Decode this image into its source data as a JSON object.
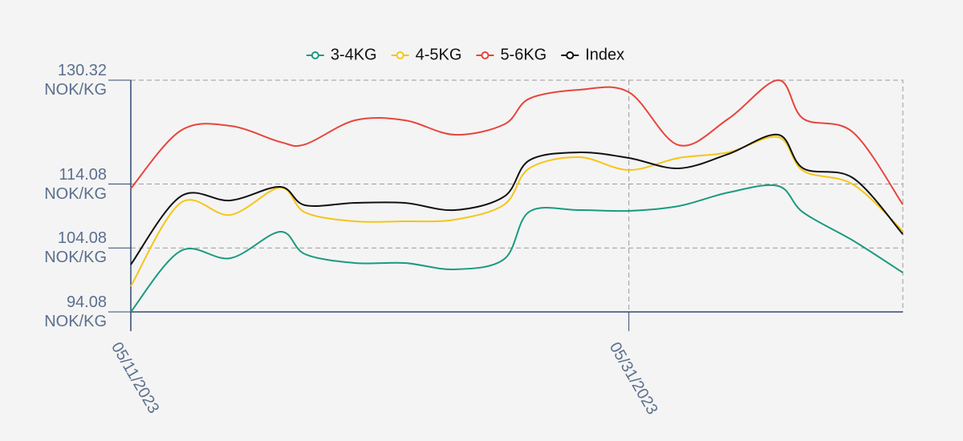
{
  "chart_data": {
    "type": "line",
    "x": [
      "05/11/2023",
      "05/13/2023",
      "05/15/2023",
      "05/17/2023",
      "05/18/2023",
      "05/20/2023",
      "05/22/2023",
      "05/24/2023",
      "05/26/2023",
      "05/27/2023",
      "05/29/2023",
      "05/31/2023",
      "06/02/2023",
      "06/04/2023",
      "06/06/2023",
      "06/07/2023",
      "06/09/2023",
      "06/11/2023"
    ],
    "xlim": [
      "05/11/2023",
      "06/11/2023"
    ],
    "xticks": [
      "05/11/2023",
      "05/31/2023"
    ],
    "ylim": [
      94.08,
      130.32
    ],
    "yticks": [
      {
        "value": 94.08,
        "label": "94.08 NOK/KG"
      },
      {
        "value": 104.08,
        "label": "104.08 NOK/KG"
      },
      {
        "value": 114.08,
        "label": "114.08 NOK/KG"
      },
      {
        "value": 130.32,
        "label": "130.32 NOK/KG"
      }
    ],
    "grid": true,
    "legend": "top",
    "series": [
      {
        "name": "3-4KG",
        "color": "#1a9a80",
        "values": [
          94.08,
          103.61,
          102.48,
          106.62,
          103.11,
          101.73,
          101.73,
          100.73,
          102.36,
          109.75,
          110.0,
          109.88,
          110.63,
          112.76,
          113.77,
          109.63,
          105.24,
          100.22
        ]
      },
      {
        "name": "4-5KG",
        "color": "#f5c518",
        "values": [
          98.09,
          111.13,
          109.25,
          113.52,
          109.63,
          108.25,
          108.25,
          108.5,
          110.88,
          116.53,
          118.28,
          116.27,
          118.16,
          119.03,
          121.42,
          116.15,
          114.02,
          106.74
        ]
      },
      {
        "name": "5-6KG",
        "color": "#e8453c",
        "values": [
          113.39,
          122.42,
          123.17,
          120.66,
          120.28,
          124.05,
          124.05,
          121.79,
          123.42,
          127.43,
          128.81,
          128.44,
          120.16,
          124.3,
          130.32,
          124.3,
          122.17,
          110.88
        ]
      },
      {
        "name": "Index",
        "color": "#111111",
        "values": [
          101.48,
          112.14,
          111.51,
          113.64,
          110.76,
          111.13,
          111.13,
          110.0,
          112.14,
          117.78,
          119.03,
          118.16,
          116.53,
          118.78,
          121.79,
          116.53,
          115.02,
          106.24
        ]
      }
    ]
  }
}
